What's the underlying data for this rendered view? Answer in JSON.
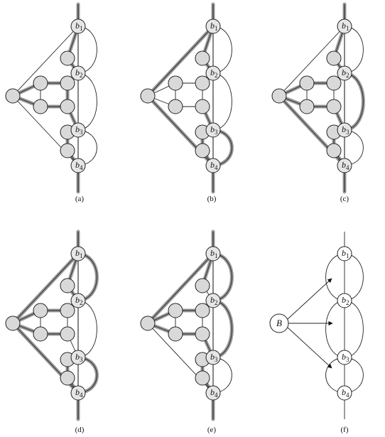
{
  "panels": [
    {
      "caption": "(a)"
    },
    {
      "caption": "(b)"
    },
    {
      "caption": "(c)"
    },
    {
      "caption": "(d)"
    },
    {
      "caption": "(e)"
    },
    {
      "caption": "(f)"
    }
  ],
  "block_labels": [
    {
      "letter": "b",
      "index": "1"
    },
    {
      "letter": "b",
      "index": "2"
    },
    {
      "letter": "b",
      "index": "3"
    },
    {
      "letter": "b",
      "index": "4"
    }
  ],
  "source_label": "B"
}
